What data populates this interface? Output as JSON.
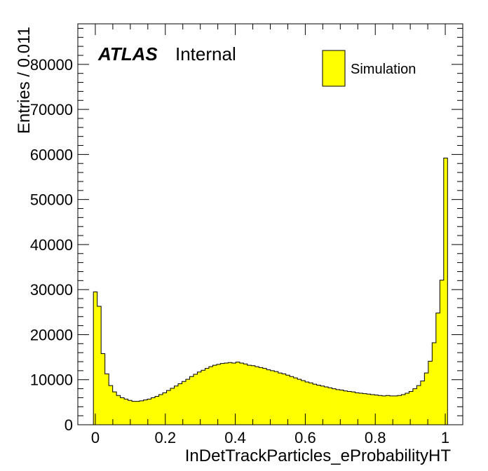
{
  "chart_data": {
    "type": "histogram",
    "xlabel": "InDetTrackParticles_eProbabilityHT",
    "ylabel": "Entries / 0.011",
    "xlim": [
      -0.05,
      1.05
    ],
    "ylim": [
      0,
      89000
    ],
    "bin_width": 0.011,
    "x_start": -0.0055,
    "x_ticks": [
      "0",
      "0.2",
      "0.4",
      "0.6",
      "0.8",
      "1"
    ],
    "y_ticks": [
      "0",
      "10000",
      "20000",
      "30000",
      "40000",
      "50000",
      "60000",
      "70000",
      "80000"
    ],
    "fill_color": "#ffff00",
    "line_color": "#000000",
    "legend": {
      "label": "Simulation",
      "placement": "top-right"
    },
    "label_atlas": "ATLAS",
    "label_status": "Internal",
    "grid": false,
    "values": [
      29500,
      26300,
      15800,
      11300,
      8700,
      7300,
      6500,
      6000,
      5700,
      5400,
      5200,
      5200,
      5300,
      5500,
      5700,
      6000,
      6300,
      6700,
      7100,
      7600,
      8100,
      8600,
      9100,
      9600,
      10100,
      10700,
      11200,
      11700,
      12100,
      12500,
      12900,
      13200,
      13400,
      13600,
      13700,
      13800,
      13700,
      13900,
      13700,
      13500,
      13200,
      13100,
      12900,
      12700,
      12500,
      12200,
      12000,
      11800,
      11500,
      11300,
      11000,
      10700,
      10400,
      10100,
      9800,
      9500,
      9300,
      9000,
      8800,
      8600,
      8400,
      8200,
      8000,
      7800,
      7700,
      7500,
      7400,
      7300,
      7100,
      7000,
      6900,
      6800,
      6700,
      6600,
      6500,
      6400,
      6500,
      6400,
      6400,
      6500,
      6700,
      7000,
      7400,
      8000,
      8700,
      9700,
      11500,
      14100,
      18200,
      24800,
      32100,
      59200
    ]
  }
}
